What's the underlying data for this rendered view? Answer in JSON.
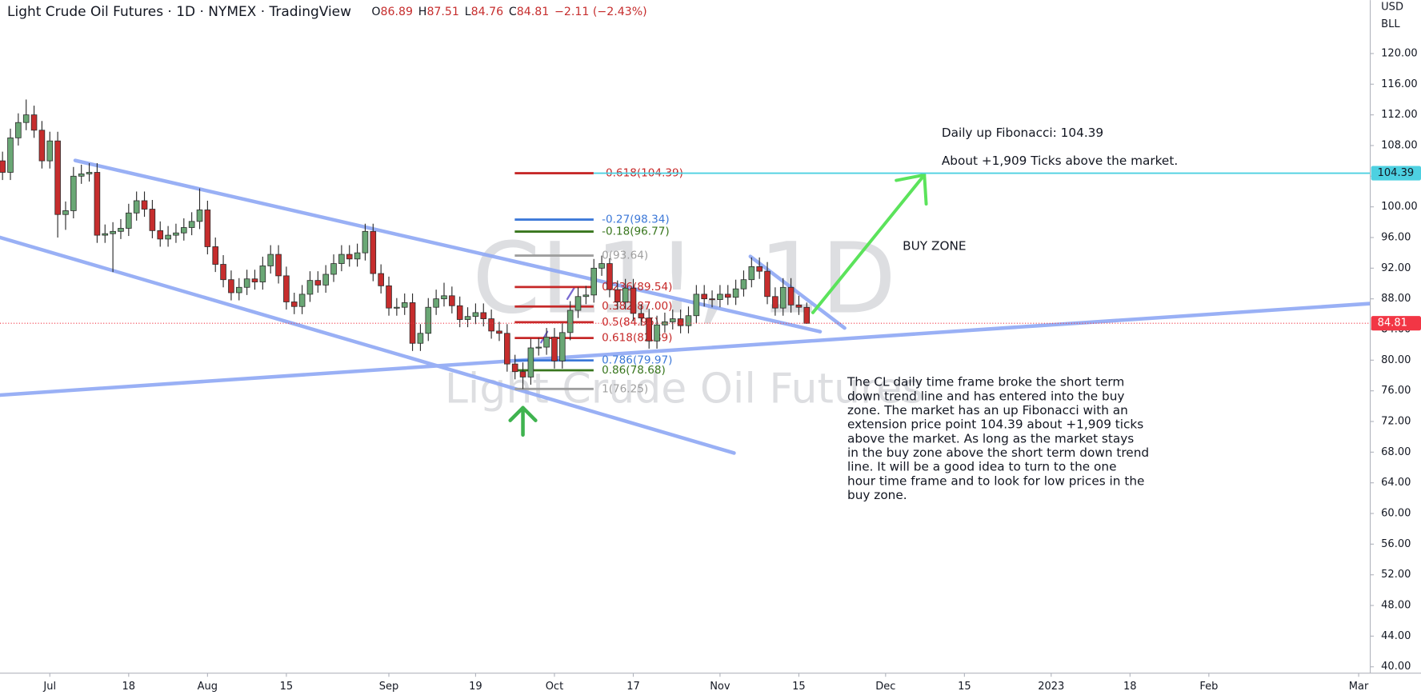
{
  "header": {
    "title": "Light Crude Oil Futures · 1D · NYMEX · TradingView",
    "ohlc": [
      {
        "key": "O",
        "value": "86.89"
      },
      {
        "key": "H",
        "value": "87.51"
      },
      {
        "key": "L",
        "value": "84.76"
      },
      {
        "key": "C",
        "value": "84.81"
      }
    ],
    "change": "−2.11 (−2.43%)"
  },
  "chart_data": {
    "type": "candlestick",
    "x": [
      -6,
      -5,
      -4,
      -3,
      -2,
      -1,
      0,
      1,
      2,
      3,
      4,
      5,
      6,
      7,
      8,
      9,
      10,
      11,
      12,
      13,
      14,
      15,
      16,
      17,
      18,
      19,
      20,
      21,
      22,
      23,
      24,
      25,
      26,
      27,
      28,
      29,
      30,
      31,
      32,
      33,
      34,
      35,
      36,
      37,
      38,
      39,
      40,
      41,
      42,
      43,
      44,
      45,
      46,
      47,
      48,
      49,
      50,
      51,
      52,
      53,
      54,
      55,
      56,
      57,
      58,
      59,
      60,
      61,
      62,
      63,
      64,
      65,
      66,
      67,
      68,
      69,
      70,
      71,
      72,
      73,
      74,
      75,
      76,
      77,
      78,
      79,
      80,
      81,
      82,
      83,
      84,
      85,
      86,
      87,
      88,
      89,
      90,
      91,
      92,
      93,
      94,
      95,
      96
    ],
    "open": [
      106.0,
      104.5,
      109.0,
      111.0,
      112.0,
      110.0,
      106.0,
      108.6,
      99.0,
      99.5,
      104.0,
      104.3,
      104.5,
      96.3,
      96.5,
      96.8,
      97.2,
      99.2,
      100.8,
      99.7,
      96.9,
      95.8,
      96.3,
      96.6,
      97.3,
      98.1,
      99.6,
      94.8,
      92.5,
      90.5,
      88.8,
      89.5,
      90.6,
      90.2,
      92.3,
      93.8,
      91.0,
      87.6,
      87.0,
      88.6,
      90.4,
      89.8,
      91.2,
      92.6,
      93.8,
      93.2,
      94.0,
      96.8,
      91.3,
      89.7,
      86.8,
      86.9,
      87.5,
      82.2,
      83.5,
      86.9,
      88.0,
      88.4,
      87.1,
      85.3,
      85.7,
      86.2,
      85.4,
      83.8,
      83.5,
      79.5,
      78.5,
      77.8,
      81.6,
      81.7,
      83.0,
      79.9,
      83.6,
      86.5,
      88.3,
      88.5,
      92.0,
      92.6,
      89.2,
      87.6,
      89.4,
      86.1,
      85.5,
      82.5,
      84.6,
      85.0,
      85.4,
      84.5,
      85.8,
      88.6,
      88.0,
      87.9,
      88.6,
      88.2,
      89.3,
      90.5,
      92.2,
      91.6,
      88.3,
      86.8,
      89.5,
      87.2,
      86.89
    ],
    "high": [
      107.2,
      110.2,
      112.2,
      114.0,
      113.2,
      111.2,
      109.8,
      109.8,
      100.7,
      105.2,
      105.5,
      105.7,
      105.7,
      97.7,
      98.0,
      98.4,
      100.4,
      102.0,
      102.0,
      100.9,
      98.1,
      97.5,
      97.8,
      98.5,
      99.3,
      102.4,
      100.8,
      96.0,
      93.7,
      91.7,
      90.7,
      91.8,
      91.8,
      93.5,
      95.0,
      95.0,
      92.2,
      88.8,
      89.8,
      91.6,
      91.6,
      92.4,
      93.8,
      95.0,
      95.0,
      95.2,
      97.8,
      97.8,
      92.5,
      90.9,
      88.1,
      88.7,
      88.7,
      84.7,
      88.1,
      89.2,
      90.1,
      89.6,
      88.3,
      86.9,
      87.4,
      87.4,
      86.6,
      85.0,
      84.7,
      80.7,
      79.7,
      82.8,
      82.9,
      84.2,
      84.2,
      84.8,
      87.7,
      89.5,
      89.7,
      93.2,
      93.64,
      93.3,
      90.4,
      90.6,
      90.6,
      87.3,
      86.7,
      85.8,
      86.2,
      86.6,
      86.6,
      87.0,
      89.8,
      89.8,
      89.1,
      89.8,
      89.8,
      90.5,
      91.7,
      93.4,
      93.4,
      92.8,
      89.5,
      90.7,
      90.7,
      88.4,
      87.51
    ],
    "low": [
      103.5,
      103.5,
      108.0,
      110.0,
      109.0,
      105.0,
      105.0,
      96.0,
      97.0,
      98.5,
      103.0,
      103.3,
      95.3,
      95.3,
      91.5,
      95.8,
      96.2,
      98.2,
      98.7,
      95.9,
      94.8,
      94.8,
      95.3,
      95.6,
      96.3,
      97.1,
      93.8,
      91.5,
      89.5,
      87.8,
      87.8,
      88.5,
      89.2,
      89.2,
      91.3,
      90.0,
      86.6,
      86.0,
      86.0,
      87.6,
      88.8,
      88.8,
      90.2,
      91.6,
      92.2,
      92.2,
      93.0,
      90.3,
      88.7,
      85.8,
      85.8,
      85.9,
      81.2,
      81.2,
      82.5,
      85.9,
      87.0,
      86.1,
      84.3,
      84.3,
      84.7,
      84.4,
      82.8,
      82.5,
      78.5,
      77.5,
      76.25,
      76.8,
      80.6,
      80.7,
      78.9,
      78.9,
      82.6,
      85.5,
      87.3,
      87.5,
      91.0,
      88.2,
      86.6,
      86.6,
      85.1,
      84.5,
      81.5,
      81.5,
      83.6,
      84.0,
      83.5,
      83.5,
      84.8,
      87.0,
      86.9,
      86.9,
      87.2,
      87.2,
      88.3,
      89.5,
      90.6,
      87.3,
      85.8,
      85.8,
      86.2,
      85.9,
      84.76
    ],
    "close": [
      104.5,
      109.0,
      111.0,
      112.0,
      110.0,
      106.0,
      108.6,
      99.0,
      99.5,
      104.0,
      104.3,
      104.5,
      96.3,
      96.5,
      96.8,
      97.2,
      99.2,
      100.8,
      99.7,
      96.9,
      95.8,
      96.3,
      96.6,
      97.3,
      98.1,
      99.6,
      94.8,
      92.5,
      90.5,
      88.8,
      89.5,
      90.6,
      90.2,
      92.3,
      93.8,
      91.0,
      87.6,
      87.0,
      88.6,
      90.4,
      89.8,
      91.2,
      92.6,
      93.8,
      93.2,
      94.0,
      96.8,
      91.3,
      89.7,
      86.8,
      86.9,
      87.5,
      82.2,
      83.5,
      86.9,
      88.0,
      88.4,
      87.1,
      85.3,
      85.7,
      86.2,
      85.4,
      83.8,
      83.5,
      79.5,
      78.5,
      77.8,
      81.6,
      81.7,
      83.0,
      79.9,
      83.6,
      86.5,
      88.3,
      88.5,
      92.0,
      92.6,
      89.2,
      87.6,
      89.4,
      86.1,
      85.5,
      82.5,
      84.6,
      85.0,
      85.4,
      84.5,
      85.8,
      88.6,
      88.0,
      87.9,
      88.6,
      88.2,
      89.3,
      90.5,
      92.2,
      91.6,
      88.3,
      86.8,
      89.5,
      87.2,
      86.9,
      84.81
    ],
    "up_color": "#6aa775",
    "down_color": "#c62d2d",
    "border_color": "#2a2a2a",
    "xlim": [
      -6.32,
      167.47
    ],
    "xticks": [
      {
        "value": 0,
        "label": "Jul"
      },
      {
        "value": 10,
        "label": "18"
      },
      {
        "value": 20,
        "label": "Aug"
      },
      {
        "value": 30,
        "label": "15"
      },
      {
        "value": 43,
        "label": "Sep"
      },
      {
        "value": 54,
        "label": "19"
      },
      {
        "value": 64,
        "label": "Oct"
      },
      {
        "value": 74,
        "label": "17"
      },
      {
        "value": 85,
        "label": "Nov"
      },
      {
        "value": 95,
        "label": "15"
      },
      {
        "value": 106,
        "label": "Dec"
      },
      {
        "value": 116,
        "label": "15"
      },
      {
        "value": 127,
        "label": "2023"
      },
      {
        "value": 137,
        "label": "18"
      },
      {
        "value": 147,
        "label": "Feb"
      },
      {
        "value": 166,
        "label": "Mar"
      }
    ],
    "ylim": [
      39.17,
      126.97
    ],
    "yticks": [
      {
        "value": 40,
        "label": "40.00"
      },
      {
        "value": 44,
        "label": "44.00"
      },
      {
        "value": 48,
        "label": "48.00"
      },
      {
        "value": 52,
        "label": "52.00"
      },
      {
        "value": 56,
        "label": "56.00"
      },
      {
        "value": 60,
        "label": "60.00"
      },
      {
        "value": 64,
        "label": "64.00"
      },
      {
        "value": 68,
        "label": "68.00"
      },
      {
        "value": 72,
        "label": "72.00"
      },
      {
        "value": 76,
        "label": "76.00"
      },
      {
        "value": 80,
        "label": "80.00"
      },
      {
        "value": 84,
        "label": "84.00"
      },
      {
        "value": 88,
        "label": "88.00"
      },
      {
        "value": 92,
        "label": "92.00"
      },
      {
        "value": 96,
        "label": "96.00"
      },
      {
        "value": 100,
        "label": "100.00"
      },
      {
        "value": 104,
        "label": "104.00"
      },
      {
        "value": 108,
        "label": "108.00"
      },
      {
        "value": 112,
        "label": "112.00"
      },
      {
        "value": 116,
        "label": "116.00"
      },
      {
        "value": 120,
        "label": "120.00"
      }
    ],
    "y_unit_labels": [
      "USD",
      "BLL"
    ],
    "price_tags": [
      {
        "price": 104.39,
        "color": "#4dd0e1",
        "text_color": "#131722",
        "line_style": "solid"
      },
      {
        "price": 84.81,
        "color": "#f23645",
        "text_color": "#ffffff",
        "line_style": "dotted"
      }
    ],
    "fibonacci": [
      {
        "label": "-0.618(104.39)",
        "price": 104.39,
        "color": "#c62828"
      },
      {
        "label": "-0.27(98.34)",
        "price": 98.34,
        "color": "#3c78d8"
      },
      {
        "label": "-0.18(96.77)",
        "price": 96.77,
        "color": "#38761d"
      },
      {
        "label": "0(93.64)",
        "price": 93.64,
        "color": "#9e9e9e"
      },
      {
        "label": "0.236(89.54)",
        "price": 89.54,
        "color": "#c62828"
      },
      {
        "label": "0.382(87.00)",
        "price": 87.0,
        "color": "#c62828"
      },
      {
        "label": "0.5(84.95)",
        "price": 84.95,
        "color": "#c62828"
      },
      {
        "label": "0.618(82.89)",
        "price": 82.89,
        "color": "#c62828"
      },
      {
        "label": "0.786(79.97)",
        "price": 79.97,
        "color": "#3c78d8"
      },
      {
        "label": "0.86(78.68)",
        "price": 78.68,
        "color": "#38761d"
      },
      {
        "label": "1(76.25)",
        "price": 76.25,
        "color": "#9e9e9e"
      }
    ],
    "watermark": [
      "CL1!, 1D",
      "Light Crude Oil Futures"
    ],
    "annotations": [
      "Daily up Fibonacci: 104.39",
      "About +1,909 Ticks above the market.",
      "BUY ZONE"
    ],
    "commentary": [
      "The CL daily time frame broke the short term",
      "down trend line and has entered into the buy",
      "zone. The market has an up Fibonacci with an",
      "extension price point 104.39 about +1,909 ticks",
      "above the market. As long as the market stays",
      "in the buy zone above the short term down trend",
      "line. It will be a good idea to turn to the one",
      "hour time frame and to look for low prices in the",
      "buy zone."
    ]
  }
}
